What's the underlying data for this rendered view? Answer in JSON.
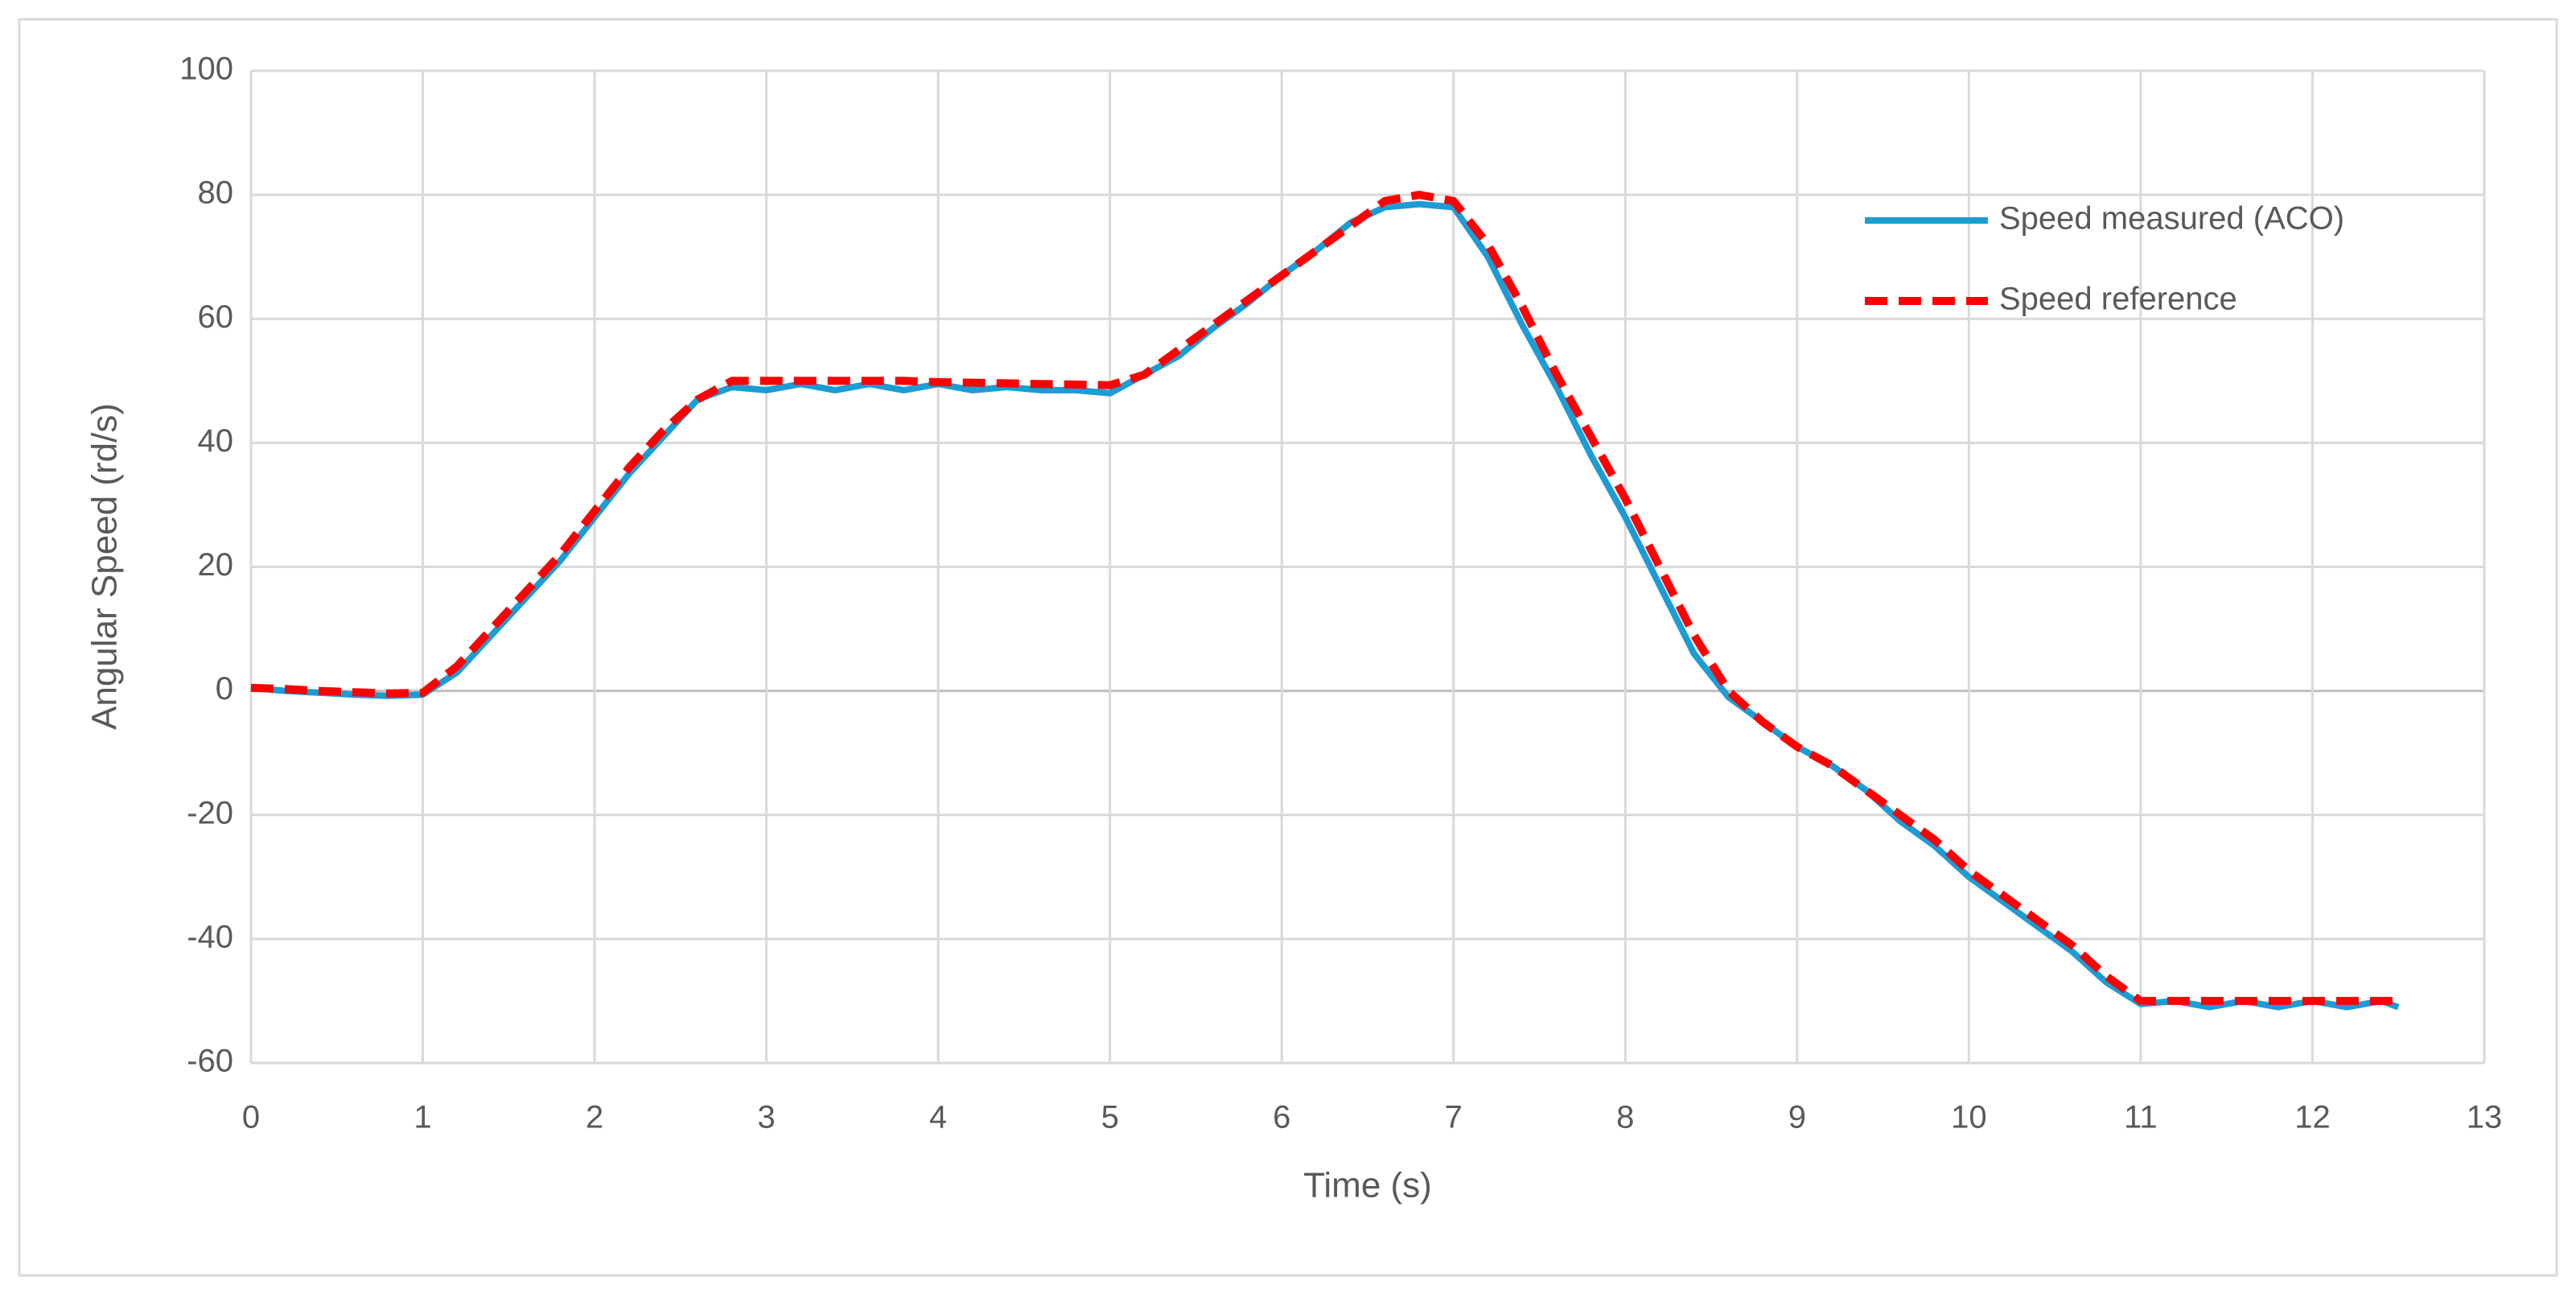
{
  "chart_data": {
    "type": "line",
    "xlabel": "Time (s)",
    "ylabel": "Angular Speed (rd/s)",
    "x": [
      0,
      0.2,
      0.4,
      0.6,
      0.8,
      1,
      1.2,
      1.4,
      1.6,
      1.8,
      2,
      2.2,
      2.4,
      2.6,
      2.8,
      3,
      3.2,
      3.4,
      3.6,
      3.8,
      4,
      4.2,
      4.4,
      4.6,
      4.8,
      5,
      5.2,
      5.4,
      5.6,
      5.8,
      6,
      6.2,
      6.4,
      6.6,
      6.8,
      7,
      7.2,
      7.4,
      7.6,
      7.8,
      8,
      8.2,
      8.4,
      8.6,
      8.8,
      9,
      9.2,
      9.4,
      9.6,
      9.8,
      10,
      10.2,
      10.4,
      10.6,
      10.8,
      11,
      11.2,
      11.4,
      11.6,
      11.8,
      12,
      12.2,
      12.4,
      12.5
    ],
    "series": [
      {
        "name": "Speed measured (ACO)",
        "color": "#1c9cd4",
        "dashed": false,
        "values": [
          0.5,
          0,
          -0.3,
          -0.6,
          -0.8,
          -0.6,
          3,
          9,
          15,
          21,
          28,
          35,
          41,
          47,
          49,
          48.5,
          49.5,
          48.5,
          49.5,
          48.5,
          49.5,
          48.5,
          49,
          48.5,
          48.5,
          48,
          51,
          54,
          58.5,
          62.5,
          67,
          71,
          75.5,
          78,
          78.5,
          78,
          70,
          59,
          49,
          38,
          28,
          17,
          6,
          -1,
          -5,
          -9,
          -12,
          -16,
          -21,
          -25,
          -30,
          -34,
          -38,
          -42,
          -47,
          -50.5,
          -50,
          -51,
          -50,
          -51,
          -50,
          -51,
          -50,
          -51
        ]
      },
      {
        "name": "Speed reference",
        "color": "#ff0000",
        "dashed": true,
        "values": [
          0.5,
          0.3,
          0,
          -0.2,
          -0.4,
          -0.3,
          4,
          10,
          16,
          22,
          29,
          36,
          42,
          47,
          50,
          50,
          50,
          50,
          50,
          50,
          49.8,
          49.7,
          49.6,
          49.5,
          49.4,
          49.3,
          51,
          55,
          59,
          63,
          67,
          71,
          75,
          79,
          80,
          79,
          72,
          62,
          51,
          41,
          31,
          20,
          9,
          0,
          -5,
          -9,
          -12,
          -16,
          -20,
          -24,
          -29,
          -33,
          -37,
          -41,
          -46,
          -50,
          -50,
          -50,
          -50,
          -50,
          -50,
          -50,
          -50,
          -50
        ]
      }
    ],
    "xlim": [
      0,
      13
    ],
    "xticks": [
      0,
      1,
      2,
      3,
      4,
      5,
      6,
      7,
      8,
      9,
      10,
      11,
      12,
      13
    ],
    "ylim": [
      -60,
      100
    ],
    "yticks": [
      -60,
      -40,
      -20,
      0,
      20,
      40,
      60,
      80,
      100
    ],
    "grid": true,
    "legend": "upper right"
  }
}
